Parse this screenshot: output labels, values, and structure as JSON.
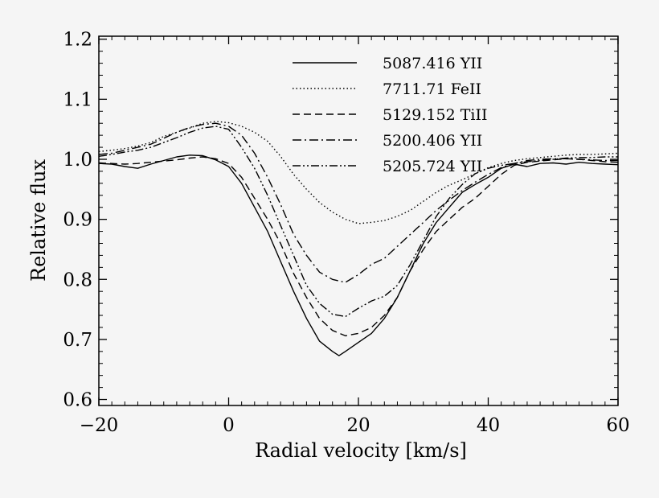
{
  "chart_data": {
    "type": "line",
    "xlabel": "Radial velocity [km/s]",
    "ylabel": "Relative flux",
    "xlim": [
      -20,
      60
    ],
    "ylim": [
      0.59,
      1.205
    ],
    "xticks": [
      {
        "value": -20,
        "label": "−20"
      },
      {
        "value": 0,
        "label": "0"
      },
      {
        "value": 20,
        "label": "20"
      },
      {
        "value": 40,
        "label": "40"
      },
      {
        "value": 60,
        "label": "60"
      }
    ],
    "yticks": [
      {
        "value": 0.6,
        "label": "0.6"
      },
      {
        "value": 0.7,
        "label": "0.7"
      },
      {
        "value": 0.8,
        "label": "0.8"
      },
      {
        "value": 0.9,
        "label": "0.9"
      },
      {
        "value": 1.0,
        "label": "1.0"
      },
      {
        "value": 1.1,
        "label": "1.1"
      },
      {
        "value": 1.2,
        "label": "1.2"
      }
    ],
    "legend_position": "top-center",
    "grid": false,
    "line_color": "#000000",
    "series": [
      {
        "name": "5087.416 YII",
        "dash": "solid",
        "x": [
          -20,
          -18,
          -16,
          -14,
          -12,
          -10,
          -8,
          -6,
          -4,
          -2,
          0,
          2,
          4,
          6,
          8,
          10,
          12,
          14,
          16,
          17,
          18,
          20,
          22,
          24,
          26,
          28,
          30,
          32,
          34,
          36,
          38,
          40,
          42,
          44,
          46,
          48,
          50,
          52,
          54,
          56,
          58,
          60
        ],
        "y": [
          0.993,
          0.992,
          0.988,
          0.985,
          0.992,
          0.998,
          1.004,
          1.007,
          1.006,
          0.999,
          0.988,
          0.96,
          0.92,
          0.88,
          0.83,
          0.78,
          0.735,
          0.697,
          0.68,
          0.673,
          0.68,
          0.695,
          0.71,
          0.735,
          0.77,
          0.815,
          0.86,
          0.895,
          0.92,
          0.945,
          0.958,
          0.97,
          0.985,
          0.992,
          0.988,
          0.993,
          0.994,
          0.992,
          0.995,
          0.993,
          0.992,
          0.991
        ]
      },
      {
        "name": "7711.71 FeII",
        "dash": "dotted",
        "x": [
          -20,
          -18,
          -16,
          -14,
          -12,
          -10,
          -8,
          -6,
          -4,
          -2,
          0,
          2,
          4,
          6,
          8,
          10,
          12,
          14,
          16,
          18,
          20,
          22,
          24,
          26,
          28,
          30,
          32,
          34,
          36,
          38,
          40,
          42,
          44,
          46,
          48,
          50,
          52,
          54,
          56,
          58,
          60
        ],
        "y": [
          1.013,
          1.015,
          1.018,
          1.022,
          1.028,
          1.038,
          1.045,
          1.052,
          1.06,
          1.063,
          1.061,
          1.055,
          1.045,
          1.03,
          1.005,
          0.975,
          0.95,
          0.928,
          0.912,
          0.9,
          0.893,
          0.895,
          0.898,
          0.905,
          0.915,
          0.93,
          0.945,
          0.957,
          0.966,
          0.976,
          0.986,
          0.993,
          0.998,
          1.001,
          1.003,
          1.005,
          1.007,
          1.008,
          1.008,
          1.009,
          1.01
        ]
      },
      {
        "name": "5129.152 TiII",
        "dash": "dashed",
        "x": [
          -20,
          -18,
          -16,
          -14,
          -12,
          -10,
          -8,
          -6,
          -4,
          -2,
          0,
          2,
          4,
          6,
          8,
          10,
          12,
          14,
          16,
          18,
          20,
          22,
          24,
          26,
          28,
          30,
          32,
          34,
          36,
          38,
          40,
          42,
          44,
          46,
          48,
          50,
          52,
          54,
          56,
          58,
          60
        ],
        "y": [
          0.994,
          0.993,
          0.992,
          0.993,
          0.995,
          0.997,
          0.999,
          1.002,
          1.004,
          1.001,
          0.993,
          0.97,
          0.935,
          0.9,
          0.86,
          0.81,
          0.77,
          0.735,
          0.715,
          0.706,
          0.71,
          0.72,
          0.74,
          0.77,
          0.815,
          0.85,
          0.88,
          0.9,
          0.92,
          0.935,
          0.955,
          0.975,
          0.99,
          0.995,
          0.997,
          0.999,
          1.001,
          1.0,
          0.998,
          0.996,
          0.995
        ]
      },
      {
        "name": "5200.406 YII",
        "dash": "dashdot",
        "x": [
          -20,
          -18,
          -16,
          -14,
          -12,
          -10,
          -8,
          -6,
          -4,
          -2,
          0,
          2,
          4,
          6,
          8,
          10,
          12,
          14,
          16,
          18,
          20,
          22,
          24,
          26,
          28,
          30,
          32,
          34,
          36,
          38,
          40,
          42,
          44,
          46,
          48,
          50,
          52,
          54,
          56,
          58,
          60
        ],
        "y": [
          1.008,
          1.01,
          1.015,
          1.02,
          1.025,
          1.035,
          1.045,
          1.053,
          1.058,
          1.06,
          1.055,
          1.04,
          1.01,
          0.97,
          0.925,
          0.875,
          0.84,
          0.812,
          0.8,
          0.795,
          0.808,
          0.825,
          0.835,
          0.855,
          0.875,
          0.895,
          0.915,
          0.932,
          0.948,
          0.962,
          0.975,
          0.986,
          0.993,
          0.998,
          1.0,
          1.001,
          1.001,
          1.0,
          0.999,
          0.998,
          0.998
        ]
      },
      {
        "name": "5205.724 YII",
        "dash": "dashdotdot",
        "x": [
          -20,
          -18,
          -16,
          -14,
          -12,
          -10,
          -8,
          -6,
          -4,
          -2,
          0,
          2,
          4,
          6,
          8,
          10,
          12,
          14,
          16,
          18,
          20,
          22,
          24,
          26,
          28,
          30,
          32,
          34,
          36,
          38,
          40,
          42,
          44,
          46,
          48,
          50,
          52,
          54,
          56,
          58,
          60
        ],
        "y": [
          1.005,
          1.008,
          1.012,
          1.015,
          1.02,
          1.028,
          1.036,
          1.045,
          1.052,
          1.055,
          1.05,
          1.02,
          0.985,
          0.94,
          0.89,
          0.84,
          0.79,
          0.76,
          0.742,
          0.738,
          0.752,
          0.764,
          0.772,
          0.79,
          0.825,
          0.865,
          0.905,
          0.935,
          0.958,
          0.976,
          0.985,
          0.99,
          0.993,
          0.996,
          0.998,
          1.0,
          1.002,
          1.003,
          1.003,
          1.004,
          1.004
        ]
      }
    ]
  }
}
